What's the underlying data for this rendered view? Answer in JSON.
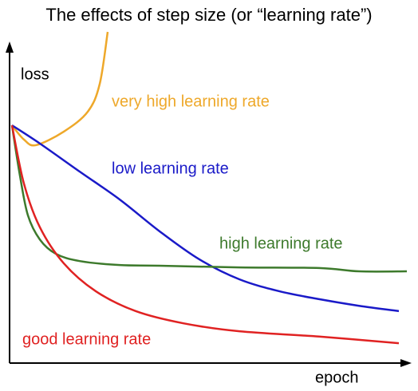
{
  "chart_data": {
    "type": "line",
    "title": "The effects of step size (or “learning rate”)",
    "xlabel": "epoch",
    "ylabel": "loss",
    "xlim": [
      0,
      100
    ],
    "ylim": [
      0,
      100
    ],
    "series": [
      {
        "name": "very high learning rate",
        "color": "#eea82a",
        "x": [
          0.6,
          3.6,
          6.6,
          13.6,
          19.6,
          22.6,
          24.6
        ],
        "values": [
          71.8,
          67.5,
          65.8,
          69.9,
          75.9,
          84.3,
          100
        ]
      },
      {
        "name": "low learning rate",
        "color": "#1a1ac8",
        "x": [
          0.6,
          7.6,
          17.6,
          27.6,
          37.6,
          47.6,
          57.6,
          67.6,
          77.6,
          87.6,
          97.6
        ],
        "values": [
          71.8,
          66.3,
          57.8,
          49.4,
          39.8,
          31.3,
          25.3,
          21.7,
          19.3,
          17.3,
          15.7
        ]
      },
      {
        "name": "high learning rate",
        "color": "#3d7a2c",
        "x": [
          0.6,
          2.6,
          4.6,
          7.6,
          11.6,
          17.6,
          27.6,
          37.6,
          57.6,
          77.6,
          87.6,
          99.6
        ],
        "values": [
          71.8,
          56.6,
          44.6,
          37.3,
          33.0,
          30.8,
          29.6,
          29.4,
          28.9,
          28.7,
          27.7,
          27.7
        ]
      },
      {
        "name": "good learning rate",
        "color": "#e02222",
        "x": [
          0.6,
          3.6,
          7.6,
          13.6,
          21.6,
          31.6,
          43.6,
          57.6,
          77.6,
          97.6
        ],
        "values": [
          71.8,
          54.2,
          41.0,
          30.1,
          21.7,
          15.7,
          12.0,
          9.6,
          8.0,
          6.0
        ]
      }
    ]
  }
}
